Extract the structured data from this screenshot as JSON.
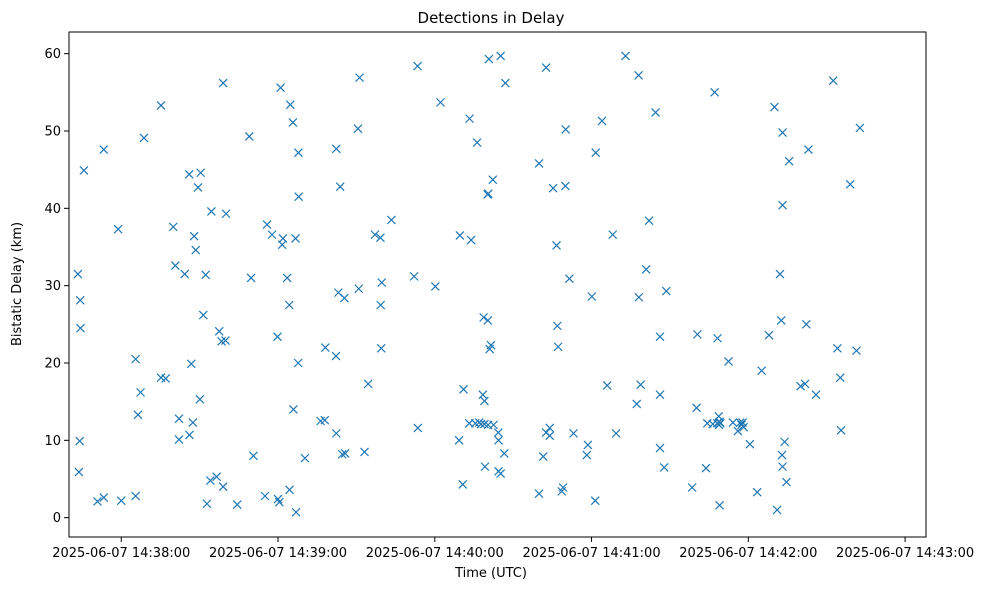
{
  "chart_data": {
    "type": "scatter",
    "title": "Detections in Delay",
    "xlabel": "Time (UTC)",
    "ylabel": "Bistatic Delay (km)",
    "x_is_time": true,
    "xlim": [
      "2025-06-07 14:37:40",
      "2025-06-07 14:43:08"
    ],
    "ylim": [
      -2.5,
      62.8
    ],
    "x_ticks": [
      "2025-06-07 14:38:00",
      "2025-06-07 14:39:00",
      "2025-06-07 14:40:00",
      "2025-06-07 14:41:00",
      "2025-06-07 14:42:00",
      "2025-06-07 14:43:00"
    ],
    "x_tick_labels": [
      "2025-06-07 14:38:00",
      "2025-06-07 14:39:00",
      "2025-06-07 14:40:00",
      "2025-06-07 14:41:00",
      "2025-06-07 14:42:00",
      "2025-06-07 14:43:00"
    ],
    "y_ticks": [
      0,
      10,
      20,
      30,
      40,
      50,
      60
    ],
    "y_tick_labels": [
      "0",
      "10",
      "20",
      "30",
      "40",
      "50",
      "60"
    ],
    "grid": false,
    "marker": "x",
    "color": "#1f77b4",
    "series": [
      {
        "points": [
          [
            "14:37:43.4",
            31.5
          ],
          [
            "14:37:44.3",
            28.1
          ],
          [
            "14:37:44.4",
            24.5
          ],
          [
            "14:37:44.1",
            9.9
          ],
          [
            "14:37:43.8",
            5.9
          ],
          [
            "14:37:45.7",
            44.9
          ],
          [
            "14:37:53.3",
            47.6
          ],
          [
            "14:37:50.9",
            2.1
          ],
          [
            "14:37:53.3",
            2.6
          ],
          [
            "14:37:58.8",
            37.3
          ],
          [
            "14:38:00.0",
            2.2
          ],
          [
            "14:38:05.5",
            20.5
          ],
          [
            "14:38:05.5",
            2.8
          ],
          [
            "14:38:06.4",
            13.3
          ],
          [
            "14:38:07.4",
            16.2
          ],
          [
            "14:38:08.7",
            49.1
          ],
          [
            "14:38:15.2",
            53.3
          ],
          [
            "14:38:15.2",
            18.1
          ],
          [
            "14:38:17.0",
            18.0
          ],
          [
            "14:38:19.9",
            37.6
          ],
          [
            "14:38:20.7",
            32.6
          ],
          [
            "14:38:22.1",
            12.8
          ],
          [
            "14:38:22.1",
            10.1
          ],
          [
            "14:38:24.3",
            31.5
          ],
          [
            "14:38:26.0",
            44.4
          ],
          [
            "14:38:26.1",
            10.7
          ],
          [
            "14:38:26.8",
            19.9
          ],
          [
            "14:38:27.4",
            12.3
          ],
          [
            "14:38:27.9",
            36.4
          ],
          [
            "14:38:28.5",
            34.6
          ],
          [
            "14:38:29.4",
            42.7
          ],
          [
            "14:38:30.4",
            44.6
          ],
          [
            "14:38:30.1",
            15.3
          ],
          [
            "14:38:31.4",
            26.2
          ],
          [
            "14:38:32.3",
            31.4
          ],
          [
            "14:38:32.8",
            1.8
          ],
          [
            "14:38:34.5",
            39.6
          ],
          [
            "14:38:34.1",
            4.8
          ],
          [
            "14:38:36.5",
            5.3
          ],
          [
            "14:38:37.5",
            24.1
          ],
          [
            "14:38:38.4",
            22.8
          ],
          [
            "14:38:39.0",
            4.0
          ],
          [
            "14:38:39.0",
            56.2
          ],
          [
            "14:38:40.1",
            39.3
          ],
          [
            "14:38:39.9",
            22.9
          ],
          [
            "14:38:44.4",
            1.7
          ],
          [
            "14:38:49.0",
            49.3
          ],
          [
            "14:38:49.7",
            31.0
          ],
          [
            "14:38:50.6",
            8.0
          ],
          [
            "14:38:55.8",
            37.9
          ],
          [
            "14:38:55.0",
            2.8
          ],
          [
            "14:38:57.7",
            36.6
          ],
          [
            "14:38:59.8",
            23.4
          ],
          [
            "14:39:00.0",
            2.4
          ],
          [
            "14:39:00.5",
            2.0
          ],
          [
            "14:39:01.0",
            55.6
          ],
          [
            "14:39:01.9",
            36.1
          ],
          [
            "14:39:01.6",
            35.3
          ],
          [
            "14:39:03.5",
            31.0
          ],
          [
            "14:39:04.7",
            53.4
          ],
          [
            "14:39:04.3",
            27.5
          ],
          [
            "14:39:04.4",
            3.6
          ],
          [
            "14:39:05.7",
            51.1
          ],
          [
            "14:39:05.9",
            14.0
          ],
          [
            "14:39:06.7",
            36.1
          ],
          [
            "14:39:06.9",
            0.7
          ],
          [
            "14:39:07.8",
            47.2
          ],
          [
            "14:39:07.9",
            41.5
          ],
          [
            "14:39:07.7",
            20.0
          ],
          [
            "14:39:10.3",
            7.7
          ],
          [
            "14:39:16.3",
            12.5
          ],
          [
            "14:39:18.1",
            22.0
          ],
          [
            "14:39:17.9",
            12.6
          ],
          [
            "14:39:22.3",
            47.7
          ],
          [
            "14:39:23.1",
            29.1
          ],
          [
            "14:39:22.2",
            20.9
          ],
          [
            "14:39:22.3",
            10.9
          ],
          [
            "14:39:23.8",
            42.8
          ],
          [
            "14:39:24.6",
            8.2
          ],
          [
            "14:39:25.4",
            28.4
          ],
          [
            "14:39:25.7",
            8.3
          ],
          [
            "14:39:30.6",
            50.3
          ],
          [
            "14:39:31.2",
            56.9
          ],
          [
            "14:39:30.9",
            29.6
          ],
          [
            "14:39:33.1",
            8.5
          ],
          [
            "14:39:34.5",
            17.3
          ],
          [
            "14:39:37.1",
            36.6
          ],
          [
            "14:39:39.2",
            36.2
          ],
          [
            "14:39:39.7",
            30.4
          ],
          [
            "14:39:39.3",
            27.5
          ],
          [
            "14:39:39.5",
            21.9
          ],
          [
            "14:39:43.4",
            38.5
          ],
          [
            "14:39:52.1",
            31.2
          ],
          [
            "14:39:53.4",
            58.4
          ],
          [
            "14:39:53.5",
            11.6
          ],
          [
            "14:40:00.2",
            29.9
          ],
          [
            "14:40:02.2",
            53.7
          ],
          [
            "14:40:09.6",
            36.5
          ],
          [
            "14:40:09.3",
            10.0
          ],
          [
            "14:40:11.0",
            16.6
          ],
          [
            "14:40:10.7",
            4.3
          ],
          [
            "14:40:13.3",
            51.6
          ],
          [
            "14:40:13.2",
            12.2
          ],
          [
            "14:40:13.9",
            35.9
          ],
          [
            "14:40:15.5",
            12.2
          ],
          [
            "14:40:16.2",
            48.5
          ],
          [
            "14:40:17.0",
            12.3
          ],
          [
            "14:40:17.7",
            12.1
          ],
          [
            "14:40:18.7",
            25.9
          ],
          [
            "14:40:18.4",
            15.9
          ],
          [
            "14:40:19.0",
            15.1
          ],
          [
            "14:40:19.0",
            12.1
          ],
          [
            "14:40:19.2",
            6.6
          ],
          [
            "14:40:20.3",
            25.5
          ],
          [
            "14:40:20.2",
            41.8
          ],
          [
            "14:40:20.5",
            41.9
          ],
          [
            "14:40:20.4",
            12.0
          ],
          [
            "14:40:20.7",
            59.3
          ],
          [
            "14:40:21.0",
            21.8
          ],
          [
            "14:40:21.5",
            22.3
          ],
          [
            "14:40:22.2",
            43.7
          ],
          [
            "14:40:22.5",
            12.0
          ],
          [
            "14:40:24.3",
            11.0
          ],
          [
            "14:40:24.4",
            10.0
          ],
          [
            "14:40:24.4",
            6.0
          ],
          [
            "14:40:25.2",
            59.7
          ],
          [
            "14:40:25.2",
            5.7
          ],
          [
            "14:40:27.0",
            56.2
          ],
          [
            "14:40:26.6",
            8.3
          ],
          [
            "14:40:39.9",
            45.8
          ],
          [
            "14:40:39.9",
            3.1
          ],
          [
            "14:40:41.5",
            7.9
          ],
          [
            "14:40:42.6",
            58.2
          ],
          [
            "14:40:42.6",
            11.0
          ],
          [
            "14:40:44.0",
            11.6
          ],
          [
            "14:40:44.0",
            10.6
          ],
          [
            "14:40:45.3",
            42.6
          ],
          [
            "14:40:46.6",
            35.2
          ],
          [
            "14:40:46.9",
            24.8
          ],
          [
            "14:40:47.2",
            22.1
          ],
          [
            "14:40:48.6",
            3.4
          ],
          [
            "14:40:49.1",
            3.9
          ],
          [
            "14:40:50.1",
            50.2
          ],
          [
            "14:40:50.0",
            42.9
          ],
          [
            "14:40:51.5",
            30.9
          ],
          [
            "14:40:53.1",
            10.9
          ],
          [
            "14:40:58.6",
            9.4
          ],
          [
            "14:40:58.2",
            8.1
          ],
          [
            "14:41:00.1",
            28.6
          ],
          [
            "14:41:01.6",
            47.2
          ],
          [
            "14:41:01.4",
            2.2
          ],
          [
            "14:41:04.0",
            51.3
          ],
          [
            "14:41:06.0",
            17.1
          ],
          [
            "14:41:08.1",
            36.6
          ],
          [
            "14:41:09.4",
            10.9
          ],
          [
            "14:41:13.0",
            59.7
          ],
          [
            "14:41:17.3",
            14.7
          ],
          [
            "14:41:18.0",
            57.2
          ],
          [
            "14:41:18.1",
            28.5
          ],
          [
            "14:41:18.8",
            17.2
          ],
          [
            "14:41:20.9",
            32.1
          ],
          [
            "14:41:22.0",
            38.4
          ],
          [
            "14:41:24.5",
            52.4
          ],
          [
            "14:41:26.2",
            23.4
          ],
          [
            "14:41:26.2",
            15.9
          ],
          [
            "14:41:26.2",
            9.0
          ],
          [
            "14:41:27.8",
            6.5
          ],
          [
            "14:41:28.6",
            29.3
          ],
          [
            "14:41:38.5",
            3.9
          ],
          [
            "14:41:40.5",
            23.7
          ],
          [
            "14:41:40.2",
            14.2
          ],
          [
            "14:41:43.8",
            6.4
          ],
          [
            "14:41:44.3",
            12.2
          ],
          [
            "14:41:46.4",
            12.1
          ],
          [
            "14:41:47.1",
            55.0
          ],
          [
            "14:41:48.1",
            12.2
          ],
          [
            "14:41:48.2",
            23.2
          ],
          [
            "14:41:48.7",
            13.1
          ],
          [
            "14:41:49.0",
            12.4
          ],
          [
            "14:41:48.8",
            12.0
          ],
          [
            "14:41:49.3",
            12.2
          ],
          [
            "14:41:49.0",
            1.6
          ],
          [
            "14:41:52.4",
            20.2
          ],
          [
            "14:41:54.1",
            12.3
          ],
          [
            "14:41:56.0",
            11.2
          ],
          [
            "14:41:56.9",
            12.3
          ],
          [
            "14:41:57.8",
            12.3
          ],
          [
            "14:41:58.2",
            11.7
          ],
          [
            "14:41:57.4",
            12.0
          ],
          [
            "14:42:00.6",
            9.5
          ],
          [
            "14:42:03.4",
            3.3
          ],
          [
            "14:42:05.1",
            19.0
          ],
          [
            "14:42:07.9",
            23.6
          ],
          [
            "14:42:10.0",
            53.1
          ],
          [
            "14:42:11.0",
            1.0
          ],
          [
            "14:42:12.1",
            31.5
          ],
          [
            "14:42:12.6",
            25.5
          ],
          [
            "14:42:13.1",
            49.8
          ],
          [
            "14:42:13.1",
            40.4
          ],
          [
            "14:42:12.9",
            8.1
          ],
          [
            "14:42:13.1",
            6.6
          ],
          [
            "14:42:13.9",
            9.8
          ],
          [
            "14:42:14.6",
            4.6
          ],
          [
            "14:42:15.6",
            46.1
          ],
          [
            "14:42:20.0",
            17.0
          ],
          [
            "14:42:21.7",
            17.3
          ],
          [
            "14:42:22.2",
            25.0
          ],
          [
            "14:42:23.0",
            47.6
          ],
          [
            "14:42:25.9",
            15.9
          ],
          [
            "14:42:32.5",
            56.5
          ],
          [
            "14:42:34.1",
            21.9
          ],
          [
            "14:42:35.2",
            18.1
          ],
          [
            "14:42:35.5",
            11.3
          ],
          [
            "14:42:39.0",
            43.1
          ],
          [
            "14:42:41.4",
            21.6
          ],
          [
            "14:42:42.7",
            50.4
          ]
        ]
      }
    ]
  }
}
